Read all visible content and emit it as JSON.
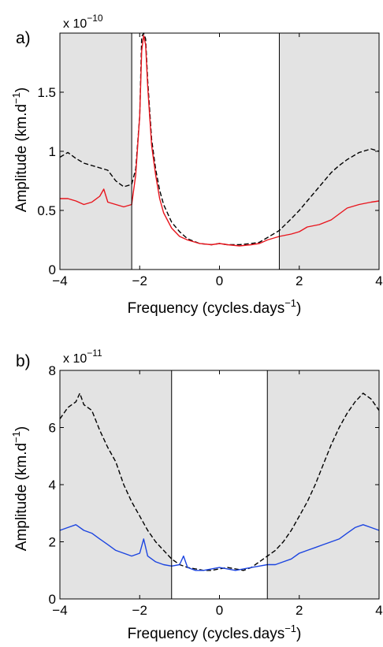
{
  "colors": {
    "shade": "#e3e3e3",
    "dashed": "#000000",
    "panel_a_line": "#e8141c",
    "panel_b_line": "#1b44e0"
  },
  "chart_data": [
    {
      "type": "line",
      "panel_label": "a)",
      "multiplier": {
        "base": "x 10",
        "exp": "−10"
      },
      "xlabel": {
        "text": "Frequency (cycles.days",
        "sup": "−1",
        "close": ")"
      },
      "ylabel": {
        "text": "Amplitude (km.d",
        "sup": "−1",
        "close": ")"
      },
      "xlim": [
        -4,
        4
      ],
      "ylim": [
        0,
        2
      ],
      "xticks": [
        -4,
        -2,
        0,
        2,
        4
      ],
      "xtick_labels": [
        "−4",
        "−2",
        "0",
        "2",
        "4"
      ],
      "yticks": [
        0,
        0.5,
        1,
        1.5
      ],
      "ytick_labels": [
        "0",
        "0.5",
        "1",
        "1.5"
      ],
      "shaded_regions": [
        [
          -4,
          -2.2
        ],
        [
          1.5,
          4
        ]
      ],
      "vertical_lines": [
        -2.2,
        1.5
      ],
      "series": [
        {
          "style": "dashed",
          "color": "#000000",
          "x": [
            -4,
            -3.8,
            -3.6,
            -3.4,
            -3.2,
            -3.0,
            -2.8,
            -2.6,
            -2.4,
            -2.2,
            -2.1,
            -2.0,
            -1.95,
            -1.9,
            -1.85,
            -1.8,
            -1.7,
            -1.6,
            -1.5,
            -1.4,
            -1.2,
            -1.0,
            -0.8,
            -0.5,
            -0.2,
            0,
            0.2,
            0.5,
            0.8,
            1.0,
            1.2,
            1.5,
            1.8,
            2.0,
            2.2,
            2.5,
            2.8,
            3.0,
            3.2,
            3.5,
            3.8,
            4.0
          ],
          "y": [
            0.95,
            0.99,
            0.94,
            0.9,
            0.88,
            0.86,
            0.84,
            0.75,
            0.7,
            0.72,
            0.85,
            1.3,
            1.97,
            2.0,
            1.95,
            1.6,
            1.1,
            0.85,
            0.67,
            0.55,
            0.4,
            0.32,
            0.26,
            0.22,
            0.21,
            0.22,
            0.21,
            0.21,
            0.22,
            0.23,
            0.27,
            0.33,
            0.43,
            0.5,
            0.58,
            0.7,
            0.82,
            0.88,
            0.93,
            0.99,
            1.02,
            1.0
          ]
        },
        {
          "style": "solid",
          "color": "#e8141c",
          "x": [
            -4,
            -3.8,
            -3.6,
            -3.4,
            -3.2,
            -3.0,
            -2.9,
            -2.8,
            -2.6,
            -2.4,
            -2.2,
            -2.1,
            -2.0,
            -1.95,
            -1.9,
            -1.85,
            -1.8,
            -1.7,
            -1.6,
            -1.5,
            -1.4,
            -1.2,
            -1.0,
            -0.8,
            -0.5,
            -0.2,
            0,
            0.2,
            0.5,
            0.8,
            1.0,
            1.2,
            1.5,
            1.8,
            2.0,
            2.2,
            2.5,
            2.8,
            3.0,
            3.2,
            3.5,
            3.8,
            4.0
          ],
          "y": [
            0.6,
            0.6,
            0.58,
            0.55,
            0.57,
            0.62,
            0.68,
            0.57,
            0.55,
            0.53,
            0.55,
            0.8,
            1.3,
            1.85,
            1.98,
            1.9,
            1.55,
            1.05,
            0.8,
            0.6,
            0.48,
            0.35,
            0.28,
            0.25,
            0.22,
            0.21,
            0.22,
            0.21,
            0.2,
            0.21,
            0.22,
            0.25,
            0.28,
            0.3,
            0.32,
            0.36,
            0.38,
            0.42,
            0.47,
            0.52,
            0.55,
            0.57,
            0.58
          ]
        }
      ]
    },
    {
      "type": "line",
      "panel_label": "b)",
      "multiplier": {
        "base": "x 10",
        "exp": "−11"
      },
      "xlabel": {
        "text": "Frequency (cycles.days",
        "sup": "−1",
        "close": ")"
      },
      "ylabel": {
        "text": "Amplitude (km.d",
        "sup": "−1",
        "close": ")"
      },
      "xlim": [
        -4,
        4
      ],
      "ylim": [
        0,
        8
      ],
      "xticks": [
        -4,
        -2,
        0,
        2,
        4
      ],
      "xtick_labels": [
        "−4",
        "−2",
        "0",
        "2",
        "4"
      ],
      "yticks": [
        0,
        2,
        4,
        6,
        8
      ],
      "ytick_labels": [
        "0",
        "2",
        "4",
        "6",
        "8"
      ],
      "shaded_regions": [
        [
          -4,
          -1.2
        ],
        [
          1.2,
          4
        ]
      ],
      "vertical_lines": [
        -1.2,
        1.2
      ],
      "series": [
        {
          "style": "dashed",
          "color": "#000000",
          "x": [
            -4,
            -3.8,
            -3.6,
            -3.5,
            -3.4,
            -3.2,
            -3.0,
            -2.8,
            -2.6,
            -2.4,
            -2.2,
            -2.0,
            -1.8,
            -1.6,
            -1.4,
            -1.2,
            -1.0,
            -0.8,
            -0.6,
            -0.4,
            -0.2,
            0,
            0.2,
            0.4,
            0.6,
            0.8,
            1.0,
            1.2,
            1.4,
            1.6,
            1.8,
            2.0,
            2.2,
            2.4,
            2.6,
            2.8,
            3.0,
            3.2,
            3.4,
            3.6,
            3.8,
            4.0
          ],
          "y": [
            6.3,
            6.7,
            6.9,
            7.2,
            6.8,
            6.6,
            5.9,
            5.3,
            4.8,
            4.0,
            3.4,
            2.9,
            2.4,
            2.0,
            1.7,
            1.4,
            1.2,
            1.1,
            1.05,
            1.0,
            1.0,
            1.05,
            1.1,
            1.05,
            1.0,
            1.1,
            1.3,
            1.5,
            1.7,
            2.0,
            2.4,
            2.9,
            3.4,
            4.0,
            4.7,
            5.4,
            6.0,
            6.5,
            6.9,
            7.2,
            7.0,
            6.6
          ]
        },
        {
          "style": "solid",
          "color": "#1b44e0",
          "x": [
            -4,
            -3.8,
            -3.6,
            -3.4,
            -3.2,
            -3.0,
            -2.8,
            -2.6,
            -2.4,
            -2.2,
            -2.0,
            -1.9,
            -1.8,
            -1.6,
            -1.4,
            -1.2,
            -1.0,
            -0.9,
            -0.8,
            -0.6,
            -0.4,
            -0.2,
            0,
            0.2,
            0.4,
            0.6,
            0.8,
            1.0,
            1.2,
            1.4,
            1.6,
            1.8,
            2.0,
            2.2,
            2.4,
            2.6,
            2.8,
            3.0,
            3.2,
            3.4,
            3.6,
            3.8,
            4.0
          ],
          "y": [
            2.4,
            2.5,
            2.6,
            2.4,
            2.3,
            2.1,
            1.9,
            1.7,
            1.6,
            1.5,
            1.6,
            2.1,
            1.5,
            1.3,
            1.2,
            1.15,
            1.2,
            1.5,
            1.1,
            1.0,
            1.0,
            1.05,
            1.1,
            1.05,
            1.0,
            1.05,
            1.1,
            1.15,
            1.2,
            1.2,
            1.3,
            1.4,
            1.6,
            1.7,
            1.8,
            1.9,
            2.0,
            2.1,
            2.3,
            2.5,
            2.6,
            2.5,
            2.4
          ]
        }
      ]
    }
  ]
}
